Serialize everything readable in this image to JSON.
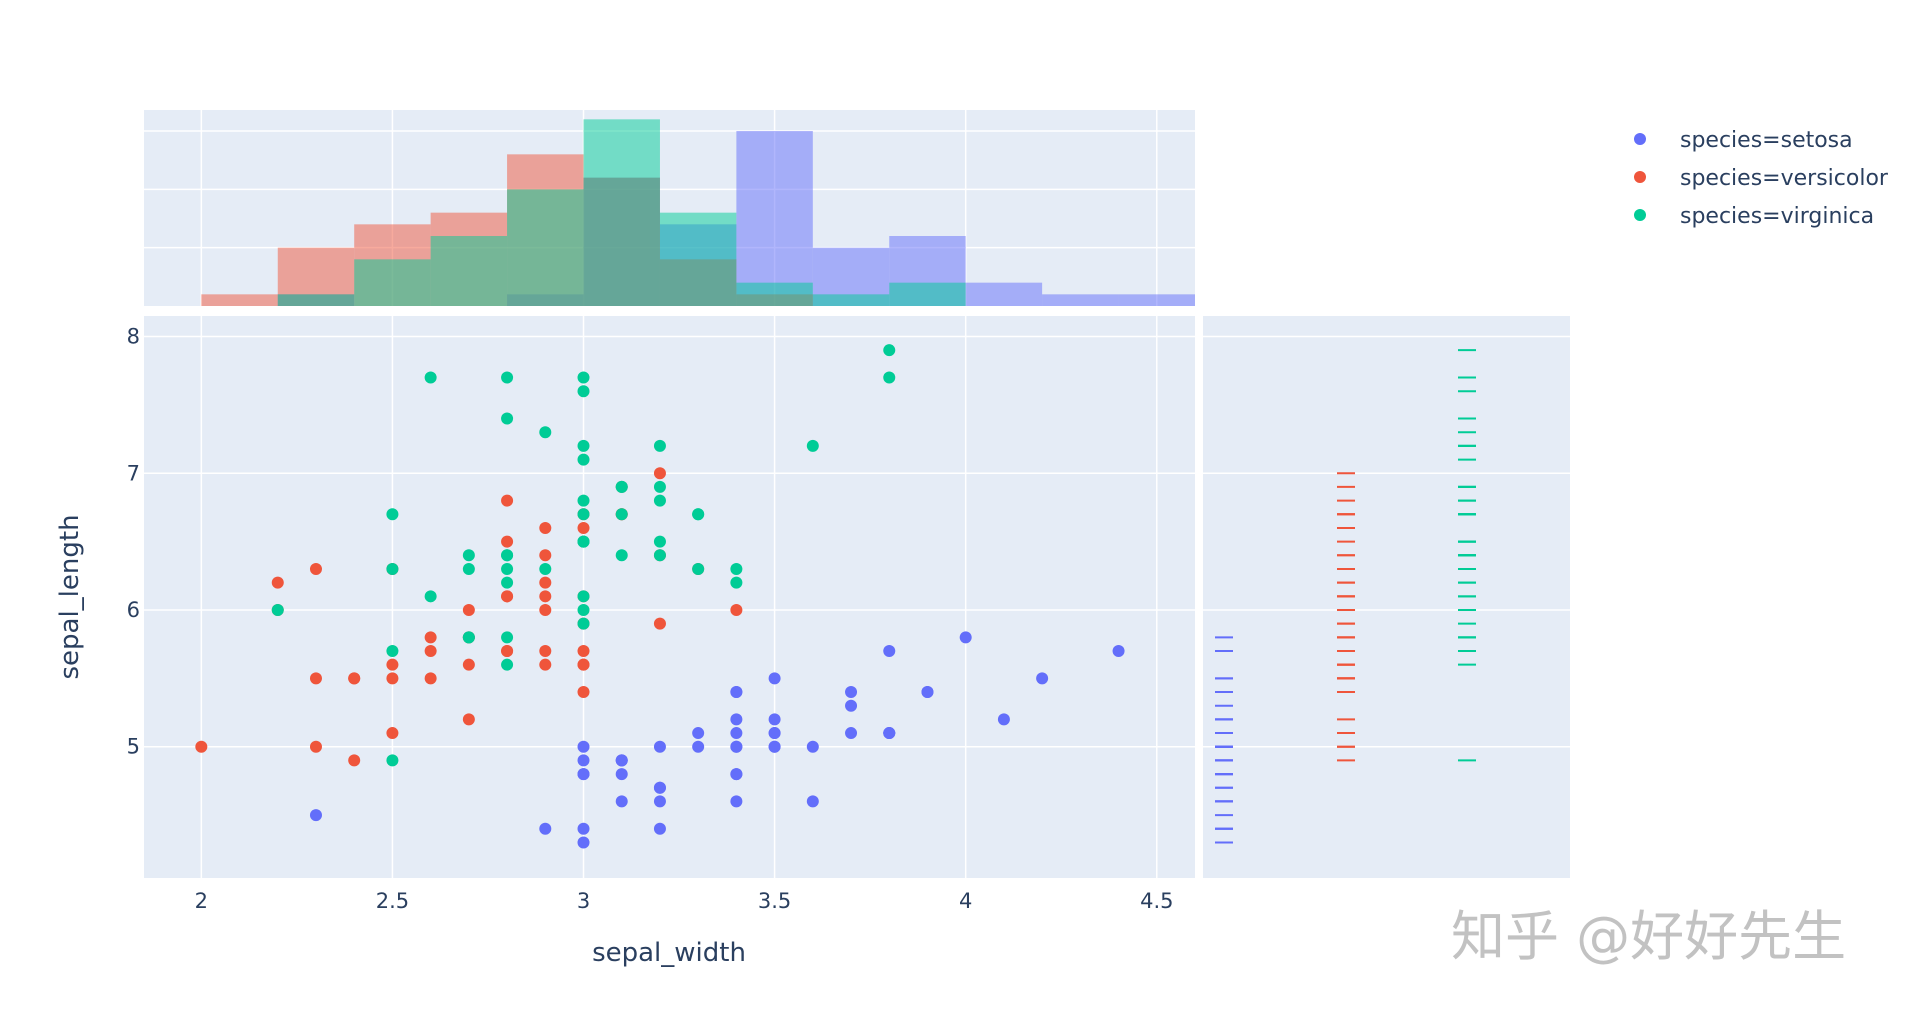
{
  "chart_data": {
    "type": "scatter",
    "xlabel": "sepal_width",
    "ylabel": "sepal_length",
    "xlim": [
      1.85,
      4.6
    ],
    "ylim": [
      4.04,
      8.15
    ],
    "x_ticks": [
      "2",
      "2.5",
      "3",
      "3.5",
      "4",
      "4.5"
    ],
    "y_ticks": [
      "5",
      "6",
      "7",
      "8"
    ],
    "grid": true,
    "legend_position": "top-right",
    "marginal_x": {
      "type": "histogram",
      "barmode": "overlay",
      "bin_start": 2.0,
      "bin_size": 0.2,
      "count_range": [
        0,
        16.8
      ],
      "count_gridlines": [
        5,
        10,
        15
      ]
    },
    "marginal_y": {
      "type": "rug"
    },
    "series": [
      {
        "name": "species=setosa",
        "color": "#636efa",
        "x": [
          3.5,
          3.0,
          3.2,
          3.1,
          3.6,
          3.9,
          3.4,
          3.4,
          2.9,
          3.1,
          3.7,
          3.4,
          3.0,
          3.0,
          4.0,
          4.4,
          3.9,
          3.5,
          3.8,
          3.8,
          3.4,
          3.7,
          3.6,
          3.3,
          3.4,
          3.0,
          3.4,
          3.5,
          3.4,
          3.2,
          3.1,
          3.4,
          4.1,
          4.2,
          3.1,
          3.2,
          3.5,
          3.1,
          3.0,
          3.4,
          3.5,
          2.3,
          3.2,
          3.5,
          3.8,
          3.0,
          3.8,
          3.2,
          3.7,
          3.3
        ],
        "y": [
          5.1,
          4.9,
          4.7,
          4.6,
          5.0,
          5.4,
          4.6,
          5.0,
          4.4,
          4.9,
          5.4,
          4.8,
          4.8,
          4.3,
          5.8,
          5.7,
          5.4,
          5.1,
          5.7,
          5.1,
          5.4,
          5.1,
          4.6,
          5.1,
          4.8,
          5.0,
          5.0,
          5.2,
          5.2,
          4.7,
          4.8,
          5.4,
          5.2,
          5.5,
          4.9,
          5.0,
          5.5,
          4.9,
          4.4,
          5.1,
          5.0,
          4.5,
          4.4,
          5.0,
          5.1,
          4.8,
          5.1,
          4.6,
          5.3,
          5.0
        ]
      },
      {
        "name": "species=versicolor",
        "color": "#EF553B",
        "x": [
          3.2,
          3.2,
          3.1,
          2.3,
          2.8,
          2.8,
          3.3,
          2.4,
          2.9,
          2.7,
          2.0,
          3.0,
          2.2,
          2.9,
          2.9,
          3.1,
          3.0,
          2.7,
          2.2,
          2.5,
          3.2,
          2.8,
          2.5,
          2.8,
          2.9,
          3.0,
          2.8,
          3.0,
          2.9,
          2.6,
          2.4,
          2.4,
          2.7,
          2.7,
          3.0,
          3.4,
          3.1,
          2.3,
          3.0,
          2.5,
          2.6,
          3.0,
          2.6,
          2.3,
          2.7,
          3.0,
          2.9,
          2.9,
          2.5,
          2.8
        ],
        "y": [
          7.0,
          6.4,
          6.9,
          5.5,
          6.5,
          5.7,
          6.3,
          4.9,
          6.6,
          5.2,
          5.0,
          5.9,
          6.0,
          6.1,
          5.6,
          6.7,
          5.6,
          5.8,
          6.2,
          5.6,
          5.9,
          6.1,
          6.3,
          6.1,
          6.4,
          6.6,
          6.8,
          6.7,
          6.0,
          5.7,
          5.5,
          5.5,
          5.8,
          6.0,
          5.4,
          6.0,
          6.7,
          6.3,
          5.6,
          5.5,
          5.5,
          6.1,
          5.8,
          5.0,
          5.6,
          5.7,
          5.7,
          6.2,
          5.1,
          5.7
        ]
      },
      {
        "name": "species=virginica",
        "color": "#00cc96",
        "x": [
          3.3,
          2.7,
          3.0,
          2.9,
          3.0,
          3.0,
          2.5,
          2.9,
          2.5,
          3.6,
          3.2,
          2.7,
          3.0,
          2.5,
          2.8,
          3.2,
          3.0,
          3.8,
          2.6,
          2.2,
          3.2,
          2.8,
          2.8,
          2.7,
          3.3,
          3.2,
          2.8,
          3.0,
          2.8,
          3.0,
          2.8,
          3.8,
          2.8,
          2.8,
          2.6,
          3.0,
          3.4,
          3.1,
          3.0,
          3.1,
          3.1,
          3.1,
          2.7,
          3.2,
          3.3,
          3.0,
          2.5,
          3.0,
          3.4,
          3.0
        ],
        "y": [
          6.3,
          5.8,
          7.1,
          6.3,
          6.5,
          7.6,
          4.9,
          7.3,
          6.7,
          7.2,
          6.5,
          6.4,
          6.8,
          5.7,
          5.8,
          6.4,
          6.5,
          7.7,
          7.7,
          6.0,
          6.9,
          5.6,
          7.7,
          6.3,
          6.7,
          7.2,
          6.2,
          6.1,
          6.4,
          7.2,
          7.4,
          7.9,
          6.4,
          6.3,
          6.1,
          7.7,
          6.3,
          6.4,
          6.0,
          6.9,
          6.7,
          6.9,
          5.8,
          6.8,
          6.7,
          6.7,
          6.3,
          6.5,
          6.2,
          5.9
        ]
      }
    ]
  },
  "watermark": "知乎 @好好先生"
}
